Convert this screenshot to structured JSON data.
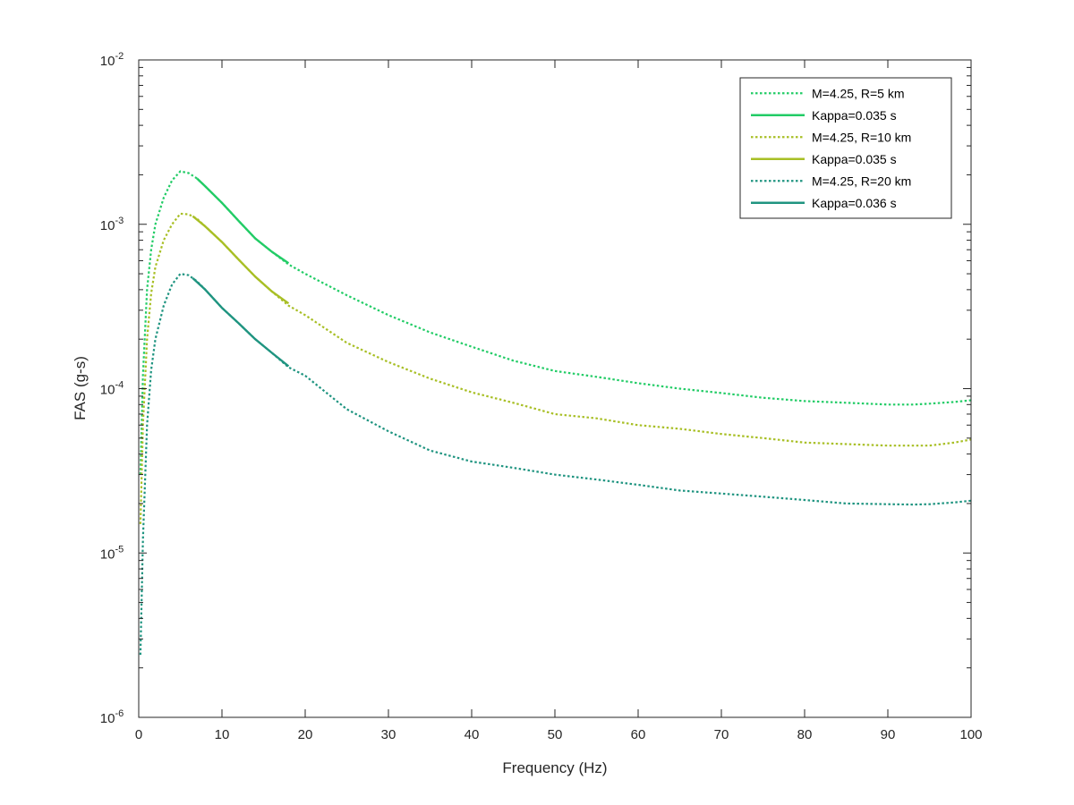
{
  "chart_data": {
    "type": "line",
    "title": "",
    "xlabel": "Frequency (Hz)",
    "ylabel": "FAS (g-s)",
    "xlim": [
      0,
      100
    ],
    "ylim": [
      1e-06,
      0.01
    ],
    "yscale": "log",
    "grid": false,
    "legend_position": "top-right",
    "x_ticks": [
      "0",
      "10",
      "20",
      "30",
      "40",
      "50",
      "60",
      "70",
      "80",
      "90",
      "100"
    ],
    "y_ticks": [
      {
        "base": "10",
        "exp": "-6"
      },
      {
        "base": "10",
        "exp": "-5"
      },
      {
        "base": "10",
        "exp": "-4"
      },
      {
        "base": "10",
        "exp": "-3"
      },
      {
        "base": "10",
        "exp": "-2"
      }
    ],
    "series": [
      {
        "name": "M=4.25, R=5 km",
        "style": "dotted",
        "color": "#22cc66",
        "x": [
          0.2,
          0.5,
          1,
          1.5,
          2,
          3,
          4,
          5,
          6,
          7,
          8,
          10,
          12,
          14,
          16,
          18,
          20,
          25,
          30,
          35,
          40,
          45,
          50,
          55,
          60,
          65,
          70,
          75,
          80,
          85,
          90,
          93,
          95,
          98,
          100
        ],
        "y": [
          3e-05,
          0.00012,
          0.0004,
          0.0007,
          0.001,
          0.00145,
          0.00185,
          0.0021,
          0.00205,
          0.0019,
          0.0017,
          0.00135,
          0.00105,
          0.00082,
          0.00068,
          0.00057,
          0.0005,
          0.00037,
          0.00028,
          0.00022,
          0.00018,
          0.000148,
          0.000128,
          0.000118,
          0.000108,
          0.0001,
          9.4e-05,
          8.8e-05,
          8.4e-05,
          8.2e-05,
          8e-05,
          8e-05,
          8.1e-05,
          8.3e-05,
          8.5e-05
        ]
      },
      {
        "name": "Kappa=0.035 s",
        "style": "solid",
        "color": "#22cc66",
        "x": [
          7,
          8,
          10,
          12,
          14,
          16,
          18
        ],
        "y": [
          0.0019,
          0.0017,
          0.00135,
          0.00105,
          0.00082,
          0.00068,
          0.00058
        ]
      },
      {
        "name": "M=4.25, R=10 km",
        "style": "dotted",
        "color": "#a8bf25",
        "x": [
          0.2,
          0.5,
          1,
          1.5,
          2,
          3,
          4,
          5,
          6,
          7,
          8,
          10,
          12,
          14,
          16,
          18,
          20,
          25,
          30,
          35,
          40,
          45,
          50,
          55,
          60,
          65,
          70,
          75,
          80,
          85,
          90,
          93,
          95,
          98,
          100
        ],
        "y": [
          1.5e-05,
          6e-05,
          0.0002,
          0.00038,
          0.00055,
          0.0008,
          0.001,
          0.00116,
          0.00115,
          0.00108,
          0.00097,
          0.00078,
          0.00061,
          0.00048,
          0.00039,
          0.00032,
          0.00028,
          0.00019,
          0.000145,
          0.000115,
          9.5e-05,
          8.2e-05,
          7e-05,
          6.6e-05,
          6e-05,
          5.7e-05,
          5.3e-05,
          5e-05,
          4.7e-05,
          4.6e-05,
          4.5e-05,
          4.5e-05,
          4.5e-05,
          4.7e-05,
          4.9e-05
        ]
      },
      {
        "name": "Kappa=0.035 s",
        "style": "solid",
        "color": "#a8bf25",
        "x": [
          6.5,
          8,
          10,
          12,
          14,
          16,
          18
        ],
        "y": [
          0.00112,
          0.00097,
          0.00078,
          0.00061,
          0.00048,
          0.00039,
          0.00033
        ]
      },
      {
        "name": "M=4.25, R=20 km",
        "style": "dotted",
        "color": "#1f9480",
        "x": [
          0.2,
          0.5,
          1,
          1.5,
          2,
          3,
          4,
          5,
          6,
          7,
          8,
          10,
          12,
          14,
          16,
          18,
          20,
          25,
          30,
          35,
          40,
          45,
          50,
          55,
          60,
          65,
          70,
          75,
          80,
          85,
          90,
          93,
          95,
          98,
          100
        ],
        "y": [
          2.4e-06,
          1.2e-05,
          6e-05,
          0.00013,
          0.0002,
          0.00032,
          0.00043,
          0.0005,
          0.00049,
          0.00045,
          0.0004,
          0.00031,
          0.00025,
          0.0002,
          0.000165,
          0.000135,
          0.00012,
          7.5e-05,
          5.5e-05,
          4.2e-05,
          3.6e-05,
          3.3e-05,
          3e-05,
          2.8e-05,
          2.6e-05,
          2.4e-05,
          2.3e-05,
          2.2e-05,
          2.1e-05,
          2e-05,
          1.98e-05,
          1.97e-05,
          1.98e-05,
          2.03e-05,
          2.08e-05
        ]
      },
      {
        "name": "Kappa=0.036 s",
        "style": "solid",
        "color": "#1f9480",
        "x": [
          6.5,
          8,
          10,
          12,
          14,
          16,
          18
        ],
        "y": [
          0.00047,
          0.0004,
          0.00031,
          0.00025,
          0.0002,
          0.000165,
          0.000137
        ]
      }
    ]
  }
}
